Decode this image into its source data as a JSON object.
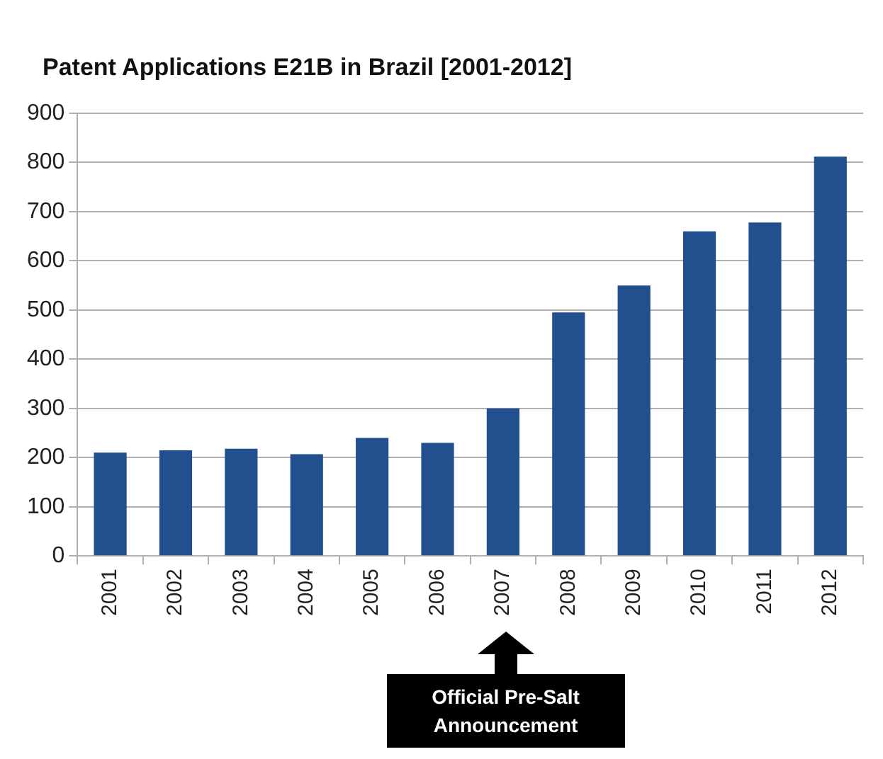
{
  "chart_data": {
    "type": "bar",
    "title": "Patent Applications E21B in Brazil [2001-2012]",
    "categories": [
      "2001",
      "2002",
      "2003",
      "2004",
      "2005",
      "2006",
      "2007",
      "2008",
      "2009",
      "2010",
      "2011",
      "2012"
    ],
    "values": [
      210,
      215,
      218,
      207,
      240,
      230,
      300,
      495,
      550,
      660,
      678,
      812
    ],
    "color": "#22508f",
    "ylim": [
      0,
      900
    ],
    "yticks": [
      0,
      100,
      200,
      300,
      400,
      500,
      600,
      700,
      800,
      900
    ],
    "grid": "y",
    "annotations": [
      "Official Pre-Salt Announcement"
    ]
  }
}
